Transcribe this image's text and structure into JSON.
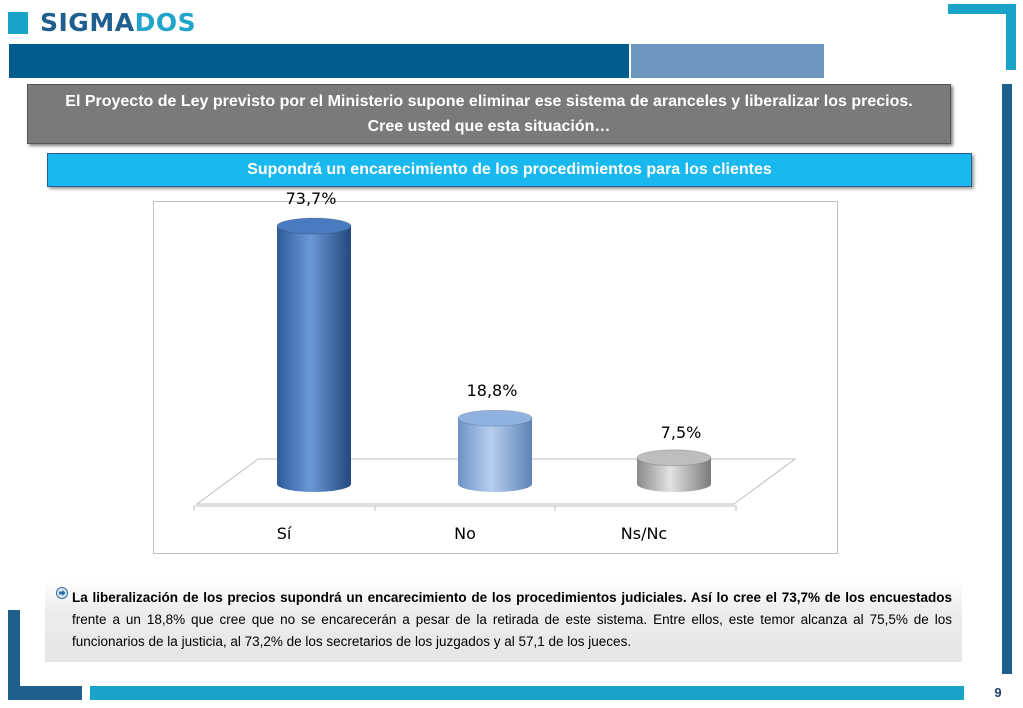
{
  "header": {
    "logo_part1": "SIGMA",
    "logo_part2": "DOS"
  },
  "question": "El Proyecto de Ley previsto por el Ministerio supone eliminar ese sistema de aranceles y liberalizar los precios. Cree usted que esta situación…",
  "subtitle": "Supondrá un encarecimiento de los procedimientos para los clientes",
  "chart_data": {
    "type": "bar",
    "style": "3d-cylinder",
    "categories": [
      "Sí",
      "No",
      "Ns/Nc"
    ],
    "values": [
      73.7,
      18.8,
      7.5
    ],
    "labels": [
      "73,7%",
      "18,8%",
      "7,5%"
    ],
    "colors": [
      "#4a7bc0",
      "#8fb2e0",
      "#bdbdbd"
    ],
    "ylim": [
      0,
      80
    ],
    "title": "",
    "xlabel": "",
    "ylabel": "",
    "grid": false,
    "legend": "none"
  },
  "summary": {
    "bold": "La liberalización de los precios supondrá un encarecimiento de los procedimientos judiciales. Así lo cree el 73,7% de los encuestados",
    "normal": " frente a un 18,8% que cree que no se encarecerán a pesar de la retirada de este sistema. Entre ellos, este temor alcanza al 75,5% de los funcionarios de la justicia, al 73,2% de los secretarios de los juzgados y al 57,1 de los jueces."
  },
  "footer": {
    "page_number": "9"
  }
}
